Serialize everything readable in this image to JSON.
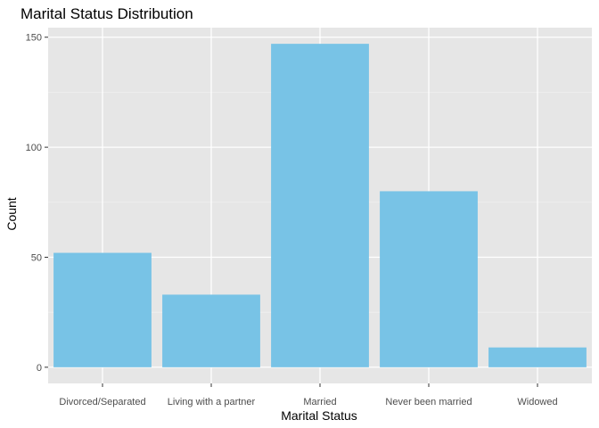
{
  "chart_data": {
    "type": "bar",
    "title": "Marital Status Distribution",
    "xlabel": "Marital Status",
    "ylabel": "Count",
    "categories": [
      "Divorced/Separated",
      "Living with a partner",
      "Married",
      "Never been married",
      "Widowed"
    ],
    "values": [
      52,
      33,
      147,
      80,
      9
    ],
    "ylim": [
      -7.35,
      154.35
    ],
    "yticks": [
      0,
      50,
      100,
      150
    ],
    "grid": true,
    "legend": "none",
    "colors": {
      "bar": "#78c3e6",
      "panel": "#e6e6e6",
      "grid_major": "#ffffff",
      "grid_minor": "#f2f2f2"
    }
  }
}
